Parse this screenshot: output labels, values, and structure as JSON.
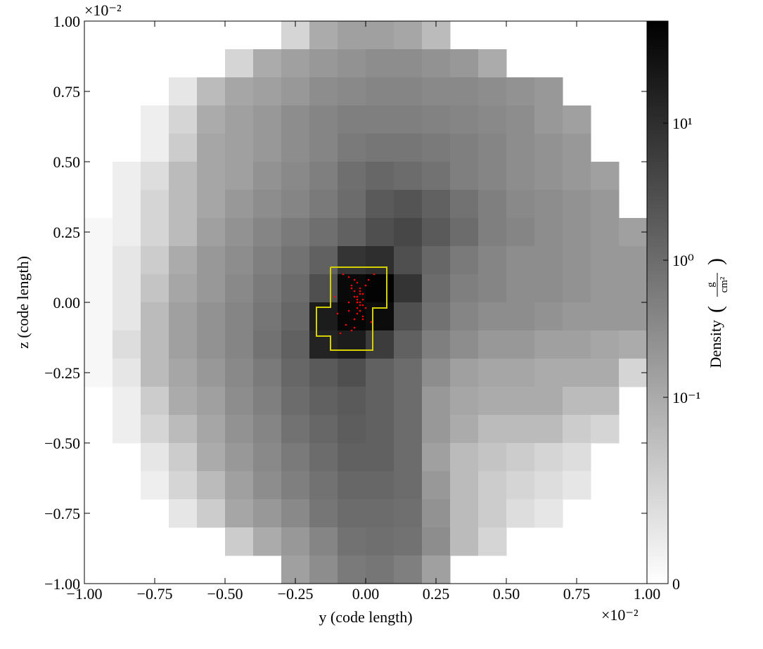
{
  "chart_data": {
    "type": "heatmap",
    "xlabel": "y  (code length)",
    "ylabel": "z  (code length)",
    "x_offset_label": "×10⁻²",
    "y_offset_label": "×10⁻²",
    "xlim": [
      -1,
      1
    ],
    "ylim": [
      -1,
      1
    ],
    "xticks": [
      {
        "value": -1,
        "label": "−1.00"
      },
      {
        "value": -0.75,
        "label": "−0.75"
      },
      {
        "value": -0.5,
        "label": "−0.50"
      },
      {
        "value": -0.25,
        "label": "−0.25"
      },
      {
        "value": 0,
        "label": "0.00"
      },
      {
        "value": 0.25,
        "label": "0.25"
      },
      {
        "value": 0.5,
        "label": "0.50"
      },
      {
        "value": 0.75,
        "label": "0.75"
      },
      {
        "value": 1,
        "label": "1.00"
      }
    ],
    "yticks": [
      {
        "value": -1,
        "label": "−1.00"
      },
      {
        "value": -0.75,
        "label": "−0.75"
      },
      {
        "value": -0.5,
        "label": "−0.50"
      },
      {
        "value": -0.25,
        "label": "−0.25"
      },
      {
        "value": 0,
        "label": "0.00"
      },
      {
        "value": 0.25,
        "label": "0.25"
      },
      {
        "value": 0.5,
        "label": "0.50"
      },
      {
        "value": 0.75,
        "label": "0.75"
      },
      {
        "value": 1,
        "label": "1.00"
      }
    ],
    "x": [
      -0.95,
      -0.85,
      -0.75,
      -0.65,
      -0.55,
      -0.45,
      -0.35,
      -0.25,
      -0.15,
      -0.05,
      0.05,
      0.15,
      0.25,
      0.35,
      0.45,
      0.55,
      0.65,
      0.75,
      0.85,
      0.95
    ],
    "y": [
      0.95,
      0.85,
      0.75,
      0.65,
      0.55,
      0.45,
      0.35,
      0.25,
      0.15,
      0.05,
      -0.05,
      -0.15,
      -0.25,
      -0.35,
      -0.45,
      -0.55,
      -0.65,
      -0.75,
      -0.85,
      -0.95
    ],
    "values": [
      [
        null,
        null,
        null,
        null,
        null,
        null,
        null,
        0.05,
        0.1,
        0.15,
        0.15,
        0.12,
        0.08,
        null,
        null,
        null,
        null,
        null,
        null,
        null
      ],
      [
        null,
        null,
        null,
        null,
        null,
        0.05,
        0.1,
        0.15,
        0.2,
        0.25,
        0.3,
        0.3,
        0.25,
        0.2,
        0.1,
        null,
        null,
        null,
        null,
        null
      ],
      [
        null,
        null,
        null,
        0.03,
        0.08,
        0.12,
        0.15,
        0.2,
        0.3,
        0.35,
        0.4,
        0.4,
        0.35,
        0.35,
        0.3,
        0.25,
        0.2,
        null,
        null,
        null
      ],
      [
        null,
        null,
        0.02,
        0.05,
        0.1,
        0.15,
        0.2,
        0.3,
        0.4,
        0.5,
        0.5,
        0.5,
        0.45,
        0.4,
        0.35,
        0.3,
        0.2,
        0.15,
        null,
        null
      ],
      [
        null,
        null,
        0.02,
        0.06,
        0.12,
        0.15,
        0.2,
        0.3,
        0.4,
        0.6,
        0.7,
        0.7,
        0.6,
        0.5,
        0.4,
        0.3,
        0.25,
        0.2,
        null,
        null
      ],
      [
        null,
        0.02,
        0.04,
        0.08,
        0.12,
        0.15,
        0.25,
        0.35,
        0.5,
        0.9,
        1.2,
        1.0,
        0.8,
        0.5,
        0.4,
        0.3,
        0.25,
        0.2,
        0.15,
        null
      ],
      [
        null,
        0.02,
        0.05,
        0.08,
        0.12,
        0.2,
        0.3,
        0.4,
        0.6,
        1.0,
        2,
        2.5,
        1.5,
        0.8,
        0.5,
        0.35,
        0.3,
        0.25,
        0.2,
        null
      ],
      [
        0.01,
        0.02,
        0.05,
        0.08,
        0.15,
        0.25,
        0.4,
        0.6,
        0.9,
        1.5,
        3,
        4,
        2,
        1.0,
        0.5,
        0.4,
        0.3,
        0.25,
        0.2,
        0.15
      ],
      [
        0.01,
        0.03,
        0.06,
        0.1,
        0.2,
        0.3,
        0.5,
        0.8,
        1.5,
        8,
        10,
        3,
        1.2,
        0.6,
        0.4,
        0.3,
        0.3,
        0.25,
        0.2,
        0.2
      ],
      [
        0.01,
        0.03,
        0.07,
        0.12,
        0.2,
        0.35,
        0.6,
        1.0,
        3,
        40,
        50,
        8,
        1.0,
        0.5,
        0.4,
        0.3,
        0.3,
        0.25,
        0.2,
        0.2
      ],
      [
        0.01,
        0.03,
        0.08,
        0.15,
        0.25,
        0.4,
        0.7,
        1.2,
        20,
        45,
        35,
        3,
        0.8,
        0.4,
        0.3,
        0.3,
        0.25,
        0.2,
        0.2,
        0.2
      ],
      [
        0.01,
        0.04,
        0.08,
        0.15,
        0.25,
        0.4,
        0.8,
        1.5,
        15,
        20,
        6,
        1.5,
        0.5,
        0.3,
        0.2,
        0.2,
        0.15,
        0.15,
        0.12,
        0.1
      ],
      [
        0.01,
        0.03,
        0.08,
        0.12,
        0.2,
        0.35,
        0.6,
        1.2,
        2,
        3,
        1.5,
        1.0,
        0.3,
        0.15,
        0.12,
        0.12,
        0.1,
        0.1,
        0.1,
        0.05
      ],
      [
        null,
        0.02,
        0.06,
        0.1,
        0.15,
        0.3,
        0.5,
        1.0,
        1.5,
        2,
        1.5,
        1.0,
        0.2,
        0.12,
        0.1,
        0.1,
        0.1,
        0.08,
        0.08,
        null
      ],
      [
        null,
        0.02,
        0.05,
        0.08,
        0.12,
        0.25,
        0.4,
        0.8,
        1.2,
        1.8,
        1.5,
        1.0,
        0.2,
        0.1,
        0.08,
        0.08,
        0.08,
        0.06,
        0.05,
        null
      ],
      [
        null,
        null,
        0.03,
        0.06,
        0.1,
        0.2,
        0.35,
        0.6,
        1.0,
        1.5,
        1.5,
        1.0,
        0.15,
        0.08,
        0.07,
        0.06,
        0.05,
        0.04,
        null,
        null
      ],
      [
        null,
        null,
        0.02,
        0.05,
        0.08,
        0.15,
        0.3,
        0.5,
        0.8,
        1.2,
        1.2,
        1.0,
        0.2,
        0.08,
        0.06,
        0.05,
        0.04,
        0.03,
        null,
        null
      ],
      [
        null,
        null,
        null,
        0.03,
        0.06,
        0.12,
        0.2,
        0.35,
        0.7,
        1.0,
        1.0,
        0.9,
        0.25,
        0.08,
        0.06,
        0.04,
        0.03,
        null,
        null,
        null
      ],
      [
        null,
        null,
        null,
        null,
        null,
        0.06,
        0.1,
        0.2,
        0.4,
        0.8,
        0.9,
        0.8,
        0.3,
        0.08,
        0.05,
        null,
        null,
        null,
        null,
        null
      ],
      [
        null,
        null,
        null,
        null,
        null,
        null,
        null,
        0.15,
        0.3,
        0.6,
        0.7,
        0.5,
        0.15,
        null,
        null,
        null,
        null,
        null,
        null,
        null
      ]
    ],
    "colormap": "gray_r",
    "colorbar_label": "Density",
    "colorbar_unit": {
      "numerator": "g",
      "denominator": "cm²"
    },
    "colorbar_scale": "symlog",
    "colorbar_linthresh": 0.1,
    "clim": [
      0,
      55.5
    ],
    "colorbar_ticks": [
      {
        "value": 0,
        "label": "0"
      },
      {
        "value": 0.1,
        "label": "10⁻¹"
      },
      {
        "value": 1,
        "label": "10⁰"
      },
      {
        "value": 10,
        "label": "10¹"
      }
    ],
    "contour": {
      "color": "#d4d000",
      "x": [
        -0.125,
        0.075,
        0.075,
        0.025,
        0.025,
        -0.125,
        -0.125,
        -0.175,
        -0.175,
        -0.125,
        -0.125
      ],
      "y": [
        0.125,
        0.125,
        -0.02,
        -0.02,
        -0.17,
        -0.17,
        -0.12,
        -0.12,
        -0.0175,
        -0.0175,
        0.125
      ]
    },
    "particles": {
      "color": "#ff0000",
      "x": [
        -0.02,
        -0.03,
        -0.01,
        -0.04,
        -0.02,
        -0.03,
        -0.05,
        0.0,
        -0.01,
        -0.03,
        -0.06,
        -0.02,
        -0.04,
        -0.01,
        -0.03,
        -0.02,
        -0.07,
        0.01,
        -0.08,
        -0.05,
        -0.03,
        -0.02,
        -0.1,
        0.02,
        -0.04,
        -0.06,
        -0.01,
        -0.09,
        -0.03,
        -0.02,
        0.0,
        -0.05,
        -0.04,
        -0.11,
        0.03,
        -0.02,
        -0.06,
        -0.03,
        -0.01,
        -0.04
      ],
      "y": [
        0.0,
        0.02,
        -0.01,
        0.04,
        -0.03,
        0.01,
        0.06,
        -0.02,
        0.03,
        -0.04,
        0.09,
        0.05,
        -0.06,
        -0.05,
        0.0,
        -0.01,
        -0.08,
        0.08,
        0.1,
        -0.1,
        0.07,
        0.03,
        -0.04,
        -0.07,
        0.02,
        0.0,
        0.01,
        -0.11,
        -0.02,
        -0.03,
        0.06,
        0.05,
        -0.09,
        0.02,
        0.1,
        0.04,
        -0.03,
        0.0,
        -0.06,
        0.08
      ]
    }
  }
}
